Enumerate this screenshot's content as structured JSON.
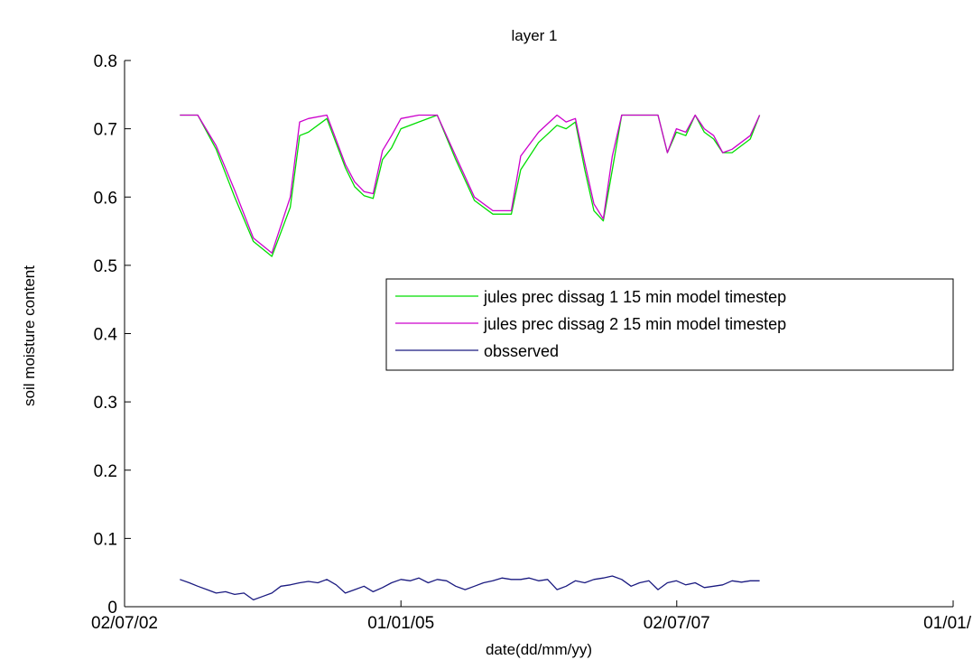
{
  "chart_data": {
    "type": "line",
    "title": "layer 1",
    "xlabel": "date(dd/mm/yy)",
    "ylabel": "soil moisture content",
    "xlim": [
      "2002-07-02",
      "2010-01-01"
    ],
    "ylim": [
      0,
      0.8
    ],
    "x_ticks": [
      {
        "label": "02/07/02",
        "date": "2002-07-02"
      },
      {
        "label": "01/01/05",
        "date": "2005-01-01"
      },
      {
        "label": "02/07/07",
        "date": "2007-07-02"
      },
      {
        "label": "01/01/",
        "date": "2010-01-01"
      }
    ],
    "y_ticks": [
      "0",
      "0.1",
      "0.2",
      "0.3",
      "0.4",
      "0.5",
      "0.6",
      "0.7",
      "0.8"
    ],
    "grid": false,
    "legend_position": "right-center",
    "series": [
      {
        "name": "jules prec dissag 1 15 min model timestep",
        "color": "#00dd00",
        "x": [
          "2003-01-01",
          "2003-03-01",
          "2003-05-01",
          "2003-07-01",
          "2003-09-01",
          "2003-11-01",
          "2004-01-01",
          "2004-02-01",
          "2004-03-01",
          "2004-05-01",
          "2004-07-01",
          "2004-08-01",
          "2004-09-01",
          "2004-10-01",
          "2004-11-01",
          "2004-12-01",
          "2005-01-01",
          "2005-03-01",
          "2005-05-01",
          "2005-07-01",
          "2005-09-01",
          "2005-11-01",
          "2006-01-01",
          "2006-02-01",
          "2006-04-01",
          "2006-06-01",
          "2006-07-01",
          "2006-08-01",
          "2006-09-01",
          "2006-10-01",
          "2006-11-01",
          "2006-12-01",
          "2007-01-01",
          "2007-03-01",
          "2007-05-01",
          "2007-06-01",
          "2007-07-01",
          "2007-08-01",
          "2007-09-01",
          "2007-10-01",
          "2007-11-01",
          "2007-12-01",
          "2008-01-01",
          "2008-03-01",
          "2008-04-01"
        ],
        "y": [
          0.72,
          0.72,
          0.67,
          0.6,
          0.535,
          0.513,
          0.585,
          0.69,
          0.695,
          0.715,
          0.643,
          0.615,
          0.602,
          0.598,
          0.655,
          0.672,
          0.7,
          0.71,
          0.72,
          0.655,
          0.595,
          0.575,
          0.575,
          0.64,
          0.68,
          0.705,
          0.7,
          0.71,
          0.64,
          0.58,
          0.565,
          0.64,
          0.72,
          0.72,
          0.72,
          0.665,
          0.695,
          0.69,
          0.72,
          0.695,
          0.685,
          0.665,
          0.665,
          0.685,
          0.72
        ]
      },
      {
        "name": "jules prec dissag 2 15 min model timestep",
        "color": "#cc00cc",
        "x": [
          "2003-01-01",
          "2003-03-01",
          "2003-05-01",
          "2003-07-01",
          "2003-09-01",
          "2003-11-01",
          "2004-01-01",
          "2004-02-01",
          "2004-03-01",
          "2004-05-01",
          "2004-07-01",
          "2004-08-01",
          "2004-09-01",
          "2004-10-01",
          "2004-11-01",
          "2004-12-01",
          "2005-01-01",
          "2005-03-01",
          "2005-05-01",
          "2005-07-01",
          "2005-09-01",
          "2005-11-01",
          "2006-01-01",
          "2006-02-01",
          "2006-04-01",
          "2006-06-01",
          "2006-07-01",
          "2006-08-01",
          "2006-09-01",
          "2006-10-01",
          "2006-11-01",
          "2006-12-01",
          "2007-01-01",
          "2007-03-01",
          "2007-05-01",
          "2007-06-01",
          "2007-07-01",
          "2007-08-01",
          "2007-09-01",
          "2007-10-01",
          "2007-11-01",
          "2007-12-01",
          "2008-01-01",
          "2008-03-01",
          "2008-04-01"
        ],
        "y": [
          0.72,
          0.72,
          0.675,
          0.61,
          0.54,
          0.518,
          0.6,
          0.71,
          0.715,
          0.72,
          0.648,
          0.622,
          0.608,
          0.605,
          0.668,
          0.69,
          0.715,
          0.72,
          0.72,
          0.66,
          0.6,
          0.58,
          0.58,
          0.66,
          0.695,
          0.72,
          0.71,
          0.715,
          0.65,
          0.59,
          0.568,
          0.66,
          0.72,
          0.72,
          0.72,
          0.665,
          0.7,
          0.695,
          0.72,
          0.7,
          0.69,
          0.665,
          0.67,
          0.69,
          0.72
        ]
      },
      {
        "name": "obsserved",
        "color": "#1a1a80",
        "x": [
          "2003-01-01",
          "2003-02-01",
          "2003-03-01",
          "2003-04-01",
          "2003-05-01",
          "2003-06-01",
          "2003-07-01",
          "2003-08-01",
          "2003-09-01",
          "2003-10-01",
          "2003-11-01",
          "2003-12-01",
          "2004-01-01",
          "2004-02-01",
          "2004-03-01",
          "2004-04-01",
          "2004-05-01",
          "2004-06-01",
          "2004-07-01",
          "2004-08-01",
          "2004-09-01",
          "2004-10-01",
          "2004-11-01",
          "2004-12-01",
          "2005-01-01",
          "2005-02-01",
          "2005-03-01",
          "2005-04-01",
          "2005-05-01",
          "2005-06-01",
          "2005-07-01",
          "2005-08-01",
          "2005-09-01",
          "2005-10-01",
          "2005-11-01",
          "2005-12-01",
          "2006-01-01",
          "2006-02-01",
          "2006-03-01",
          "2006-04-01",
          "2006-05-01",
          "2006-06-01",
          "2006-07-01",
          "2006-08-01",
          "2006-09-01",
          "2006-10-01",
          "2006-11-01",
          "2006-12-01",
          "2007-01-01",
          "2007-02-01",
          "2007-03-01",
          "2007-04-01",
          "2007-05-01",
          "2007-06-01",
          "2007-07-01",
          "2007-08-01",
          "2007-09-01",
          "2007-10-01",
          "2007-11-01",
          "2007-12-01",
          "2008-01-01",
          "2008-02-01",
          "2008-03-01",
          "2008-04-01"
        ],
        "y": [
          0.04,
          0.035,
          0.03,
          0.025,
          0.02,
          0.022,
          0.018,
          0.02,
          0.01,
          0.015,
          0.02,
          0.03,
          0.032,
          0.035,
          0.037,
          0.035,
          0.04,
          0.032,
          0.02,
          0.025,
          0.03,
          0.022,
          0.028,
          0.035,
          0.04,
          0.038,
          0.042,
          0.035,
          0.04,
          0.038,
          0.03,
          0.025,
          0.03,
          0.035,
          0.038,
          0.042,
          0.04,
          0.04,
          0.042,
          0.038,
          0.04,
          0.025,
          0.03,
          0.038,
          0.035,
          0.04,
          0.042,
          0.045,
          0.04,
          0.03,
          0.035,
          0.038,
          0.025,
          0.035,
          0.038,
          0.032,
          0.035,
          0.028,
          0.03,
          0.032,
          0.038,
          0.036,
          0.038,
          0.038
        ]
      }
    ]
  }
}
